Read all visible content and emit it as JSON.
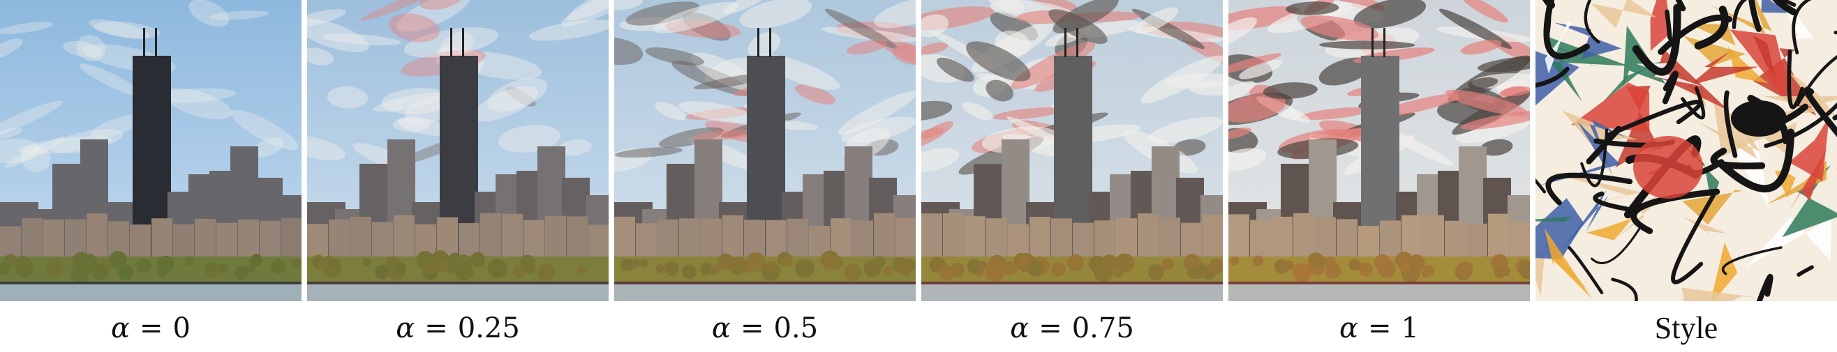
{
  "figure": {
    "panels": [
      {
        "symbol": "α",
        "relation": "=",
        "value": "0",
        "style_weight": 0.0
      },
      {
        "symbol": "α",
        "relation": "=",
        "value": "0.25",
        "style_weight": 0.25
      },
      {
        "symbol": "α",
        "relation": "=",
        "value": "0.5",
        "style_weight": 0.5
      },
      {
        "symbol": "α",
        "relation": "=",
        "value": "0.75",
        "style_weight": 0.75
      },
      {
        "symbol": "α",
        "relation": "=",
        "value": "1",
        "style_weight": 1.0
      }
    ],
    "style_panel": {
      "label": "Style"
    },
    "colors": {
      "sky": "#a8c9e6",
      "cloud": "#f2f0ec",
      "skyscraper": "#2a2c33",
      "buildings": "#7d6a5f",
      "trees": "#6f7a3c",
      "water": "#9fb0b8",
      "style_orange": "#e3a43a",
      "style_red": "#d9443a",
      "style_black": "#151515",
      "style_cream": "#f4ede0"
    }
  }
}
